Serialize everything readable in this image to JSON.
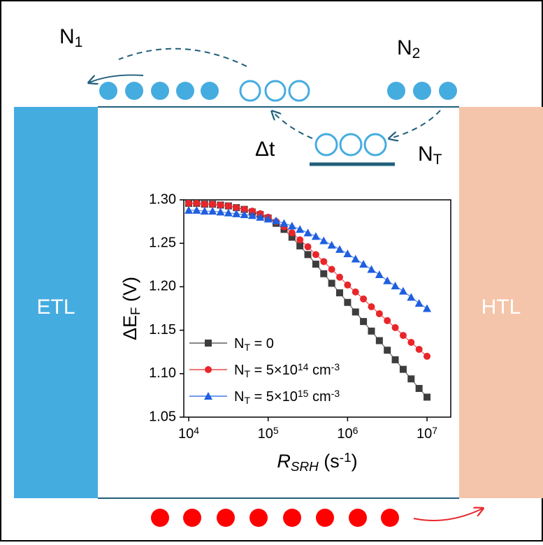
{
  "diagram": {
    "n1": [
      {
        "text": "N"
      },
      {
        "sub": "1"
      }
    ],
    "n2": [
      {
        "text": "N"
      },
      {
        "sub": "2"
      }
    ],
    "delta_t": "Δt",
    "nt": [
      {
        "text": "N"
      },
      {
        "sub": "T"
      }
    ],
    "etl": "ETL",
    "htl": "HTL"
  },
  "chart_data": {
    "type": "line",
    "xlabel": [
      {
        "text": "R",
        "italic": true
      },
      {
        "sub": "SRH",
        "italic": true
      },
      {
        "text": " (s"
      },
      {
        "sup": "-1"
      },
      {
        "text": ")"
      }
    ],
    "ylabel": [
      {
        "text": "ΔE"
      },
      {
        "sub": "F"
      },
      {
        "text": " (V)"
      }
    ],
    "xlog": true,
    "xlim": [
      8670,
      19900000
    ],
    "ylim": [
      1.05,
      1.3
    ],
    "xticks": [
      {
        "value": 10000,
        "label": [
          {
            "text": "10"
          },
          {
            "sup": "4"
          }
        ]
      },
      {
        "value": 100000,
        "label": [
          {
            "text": "10"
          },
          {
            "sup": "5"
          }
        ]
      },
      {
        "value": 1000000,
        "label": [
          {
            "text": "10"
          },
          {
            "sup": "6"
          }
        ]
      },
      {
        "value": 10000000,
        "label": [
          {
            "text": "10"
          },
          {
            "sup": "7"
          }
        ]
      }
    ],
    "yticks": [
      {
        "value": 1.3,
        "label": "1.30"
      },
      1.25,
      {
        "value": 1.2,
        "label": "1.20"
      },
      1.15,
      {
        "value": 1.1,
        "label": "1.10"
      },
      1.05
    ],
    "legend": "lower left",
    "x": [
      10000,
      12589,
      15849,
      19953,
      25119,
      31623,
      39811,
      50119,
      63096,
      79433,
      100000,
      125893,
      158489,
      199526,
      251189,
      316228,
      398107,
      501187,
      630957,
      794328,
      1000000,
      1258925,
      1584893,
      1995262,
      2511886,
      3162278,
      3981072,
      5011872,
      6309573,
      7943282,
      10000000
    ],
    "series": [
      {
        "name": [
          {
            "text": "N"
          },
          {
            "sub": "T"
          },
          {
            "text": " = 0"
          }
        ],
        "color": "#3d3d3d",
        "marker": "square",
        "values": [
          1.296,
          1.296,
          1.295,
          1.295,
          1.294,
          1.293,
          1.291,
          1.289,
          1.286,
          1.283,
          1.279,
          1.273,
          1.266,
          1.257,
          1.247,
          1.237,
          1.226,
          1.215,
          1.204,
          1.193,
          1.182,
          1.171,
          1.16,
          1.149,
          1.138,
          1.127,
          1.116,
          1.105,
          1.094,
          1.083,
          1.073
        ]
      },
      {
        "name": [
          {
            "text": "N"
          },
          {
            "sub": "T"
          },
          {
            "text": " = 5×10"
          },
          {
            "sup": "14"
          },
          {
            "text": " cm"
          },
          {
            "sup": "-3"
          }
        ],
        "color": "#e8262a",
        "marker": "circle",
        "values": [
          1.296,
          1.296,
          1.295,
          1.295,
          1.294,
          1.293,
          1.291,
          1.289,
          1.287,
          1.284,
          1.28,
          1.275,
          1.269,
          1.262,
          1.254,
          1.246,
          1.237,
          1.229,
          1.22,
          1.211,
          1.202,
          1.194,
          1.186,
          1.177,
          1.169,
          1.161,
          1.153,
          1.144,
          1.136,
          1.128,
          1.12
        ]
      },
      {
        "name": [
          {
            "text": "N"
          },
          {
            "sub": "T"
          },
          {
            "text": " = 5×10"
          },
          {
            "sup": "15"
          },
          {
            "text": " cm"
          },
          {
            "sup": "-3"
          }
        ],
        "color": "#1f5fe0",
        "marker": "triangle",
        "values": [
          1.288,
          1.288,
          1.287,
          1.287,
          1.286,
          1.285,
          1.284,
          1.283,
          1.282,
          1.28,
          1.278,
          1.276,
          1.273,
          1.27,
          1.266,
          1.262,
          1.258,
          1.253,
          1.248,
          1.243,
          1.238,
          1.232,
          1.226,
          1.22,
          1.214,
          1.207,
          1.201,
          1.195,
          1.188,
          1.181,
          1.175
        ]
      }
    ]
  }
}
